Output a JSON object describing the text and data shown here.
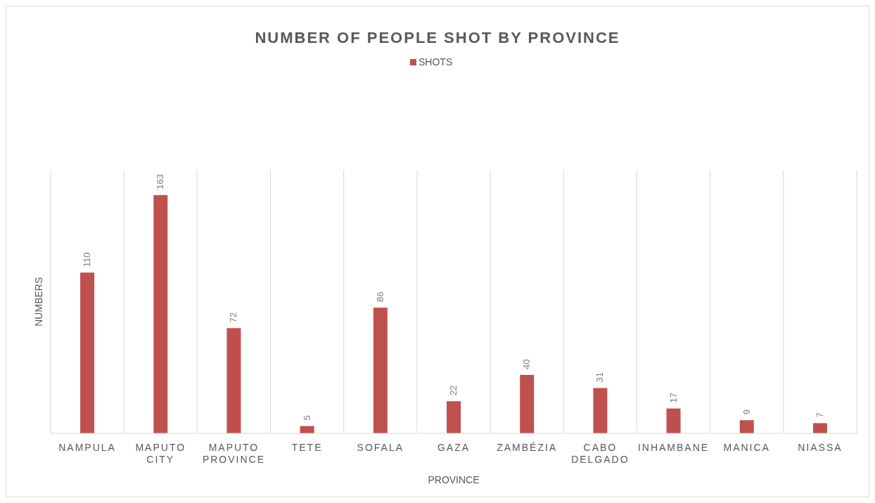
{
  "chart_data": {
    "type": "bar",
    "title": "NUMBER OF PEOPLE SHOT BY PROVINCE",
    "xlabel": "PROVINCE",
    "ylabel": "NUMBERS",
    "categories": [
      "NAMPULA",
      "MAPUTO CITY",
      "MAPUTO PROVINCE",
      "TETE",
      "SOFALA",
      "GAZA",
      "ZAMBÉZIA",
      "CABO DELGADO",
      "INHAMBANE",
      "MANICA",
      "NIASSA"
    ],
    "series": [
      {
        "name": "SHOTS",
        "color": "#c0504d",
        "values": [
          110,
          163,
          72,
          5,
          86,
          22,
          40,
          31,
          17,
          9,
          7
        ]
      }
    ],
    "ylim": [
      0,
      180
    ],
    "data_labels": true,
    "grid": "x",
    "legend": "top",
    "tick_labels": "x"
  }
}
